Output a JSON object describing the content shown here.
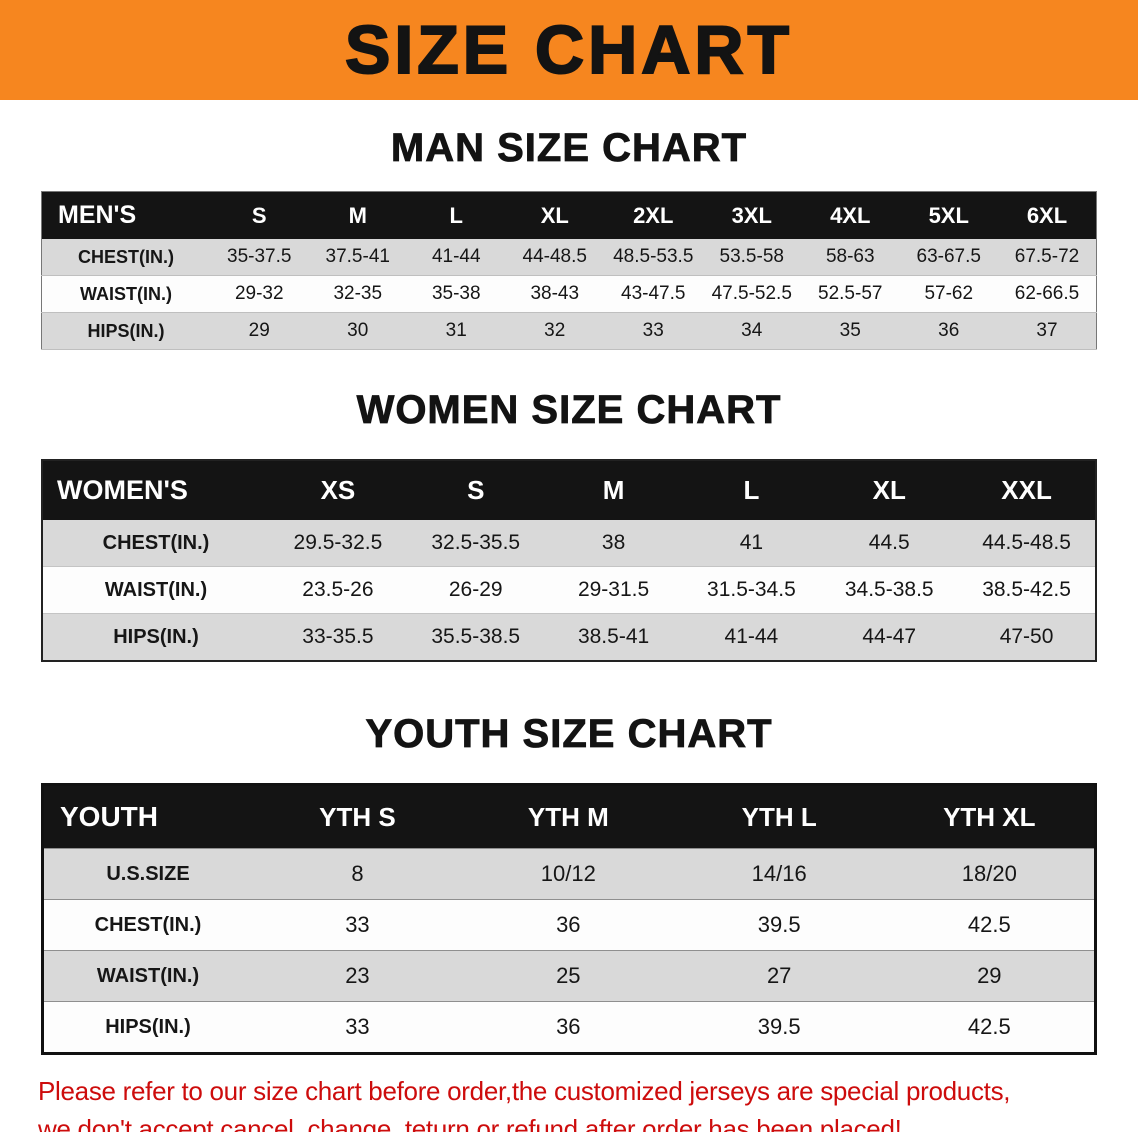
{
  "banner": {
    "title": "SIZE CHART"
  },
  "colors": {
    "banner_bg": "#f6861f",
    "table_header_bg": "#141414",
    "row_stripe": "#d9d9d9",
    "note_red": "#cd0c0c"
  },
  "men": {
    "heading": "MAN SIZE CHART",
    "table": {
      "header": [
        "MEN'S",
        "S",
        "M",
        "L",
        "XL",
        "2XL",
        "3XL",
        "4XL",
        "5XL",
        "6XL"
      ],
      "rows": [
        [
          "CHEST(IN.)",
          "35-37.5",
          "37.5-41",
          "41-44",
          "44-48.5",
          "48.5-53.5",
          "53.5-58",
          "58-63",
          "63-67.5",
          "67.5-72"
        ],
        [
          "WAIST(IN.)",
          "29-32",
          "32-35",
          "35-38",
          "38-43",
          "43-47.5",
          "47.5-52.5",
          "52.5-57",
          "57-62",
          "62-66.5"
        ],
        [
          "HIPS(IN.)",
          "29",
          "30",
          "31",
          "32",
          "33",
          "34",
          "35",
          "36",
          "37"
        ]
      ]
    }
  },
  "women": {
    "heading": "WOMEN SIZE CHART",
    "table": {
      "header": [
        "WOMEN'S",
        "XS",
        "S",
        "M",
        "L",
        "XL",
        "XXL"
      ],
      "rows": [
        [
          "CHEST(IN.)",
          "29.5-32.5",
          "32.5-35.5",
          "38",
          "41",
          "44.5",
          "44.5-48.5"
        ],
        [
          "WAIST(IN.)",
          "23.5-26",
          "26-29",
          "29-31.5",
          "31.5-34.5",
          "34.5-38.5",
          "38.5-42.5"
        ],
        [
          "HIPS(IN.)",
          "33-35.5",
          "35.5-38.5",
          "38.5-41",
          "41-44",
          "44-47",
          "47-50"
        ]
      ]
    }
  },
  "youth": {
    "heading": "YOUTH SIZE CHART",
    "table": {
      "header": [
        "YOUTH",
        "YTH S",
        "YTH M",
        "YTH L",
        "YTH XL"
      ],
      "rows": [
        [
          "U.S.SIZE",
          "8",
          "10/12",
          "14/16",
          "18/20"
        ],
        [
          "CHEST(IN.)",
          "33",
          "36",
          "39.5",
          "42.5"
        ],
        [
          "WAIST(IN.)",
          "23",
          "25",
          "27",
          "29"
        ],
        [
          "HIPS(IN.)",
          "33",
          "36",
          "39.5",
          "42.5"
        ]
      ]
    }
  },
  "footnote": {
    "line1": "Please refer to our size chart before order,the customized jerseys are special products,",
    "line2": "we don't accept cancel, change, teturn or refund after order has been placed!"
  }
}
